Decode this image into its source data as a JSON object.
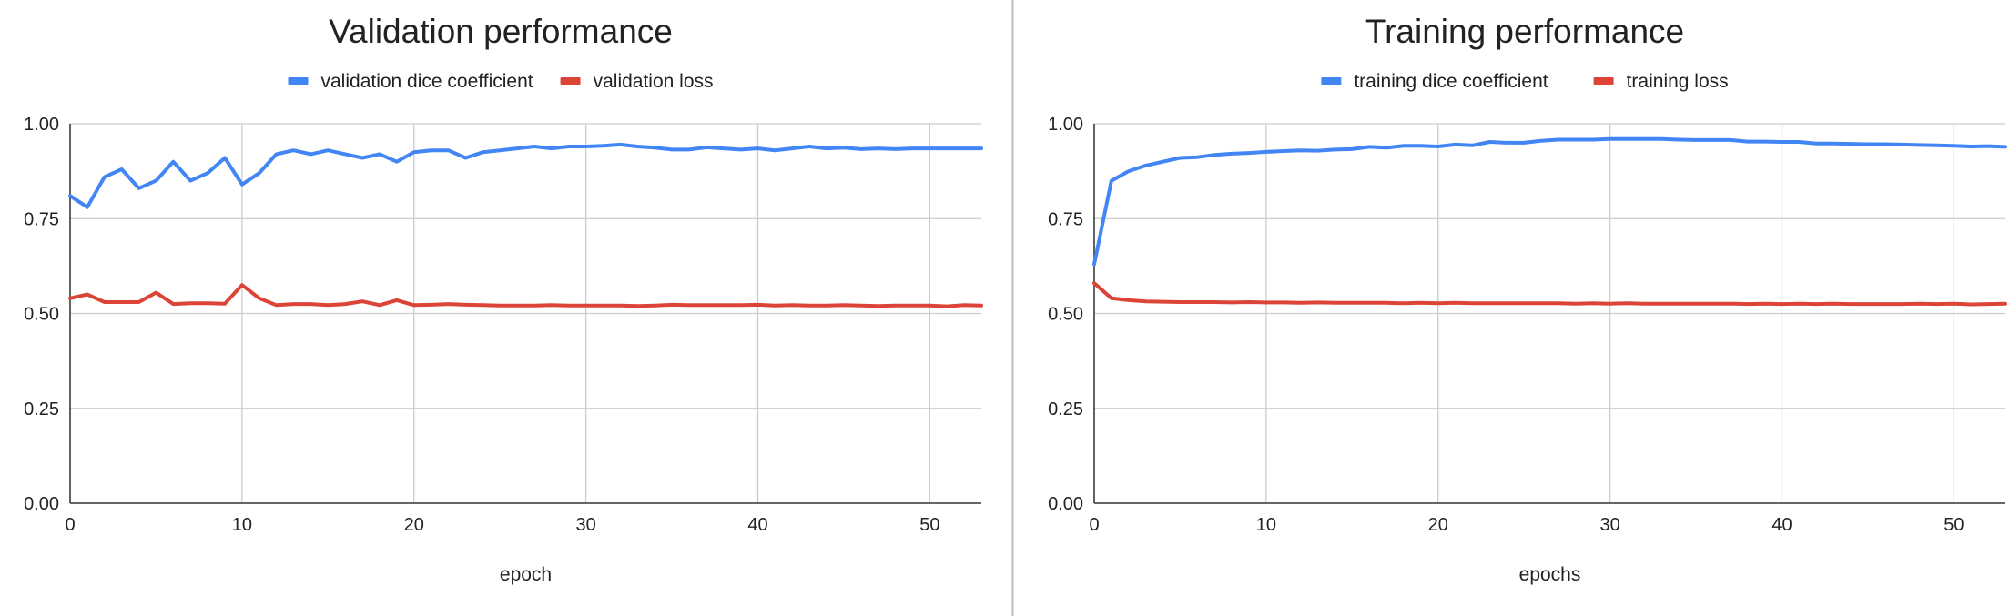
{
  "chart_data": [
    {
      "type": "line",
      "title": "Validation performance",
      "xlabel": "epoch",
      "ylabel": "",
      "xlim": [
        0,
        53
      ],
      "ylim": [
        0,
        1
      ],
      "xticks": [
        0,
        10,
        20,
        30,
        40,
        50
      ],
      "yticks": [
        "0.00",
        "0.25",
        "0.50",
        "0.75",
        "1.00"
      ],
      "legend_position": "top",
      "grid": true,
      "series": [
        {
          "name": "validation dice coefficient",
          "color": "#4285F4",
          "x": [
            0,
            1,
            2,
            3,
            4,
            5,
            6,
            7,
            8,
            9,
            10,
            11,
            12,
            13,
            14,
            15,
            16,
            17,
            18,
            19,
            20,
            21,
            22,
            23,
            24,
            25,
            26,
            27,
            28,
            29,
            30,
            31,
            32,
            33,
            34,
            35,
            36,
            37,
            38,
            39,
            40,
            41,
            42,
            43,
            44,
            45,
            46,
            47,
            48,
            49,
            50,
            51,
            52,
            53
          ],
          "values": [
            0.81,
            0.78,
            0.86,
            0.88,
            0.83,
            0.85,
            0.9,
            0.85,
            0.87,
            0.91,
            0.84,
            0.87,
            0.92,
            0.93,
            0.92,
            0.93,
            0.92,
            0.91,
            0.92,
            0.9,
            0.925,
            0.93,
            0.93,
            0.91,
            0.925,
            0.93,
            0.935,
            0.94,
            0.935,
            0.94,
            0.94,
            0.942,
            0.945,
            0.94,
            0.937,
            0.932,
            0.932,
            0.938,
            0.935,
            0.932,
            0.935,
            0.93,
            0.935,
            0.94,
            0.935,
            0.937,
            0.933,
            0.935,
            0.933,
            0.935,
            0.935,
            0.935,
            0.935,
            0.935
          ]
        },
        {
          "name": "validation loss",
          "color": "#DB4437",
          "x": [
            0,
            1,
            2,
            3,
            4,
            5,
            6,
            7,
            8,
            9,
            10,
            11,
            12,
            13,
            14,
            15,
            16,
            17,
            18,
            19,
            20,
            21,
            22,
            23,
            24,
            25,
            26,
            27,
            28,
            29,
            30,
            31,
            32,
            33,
            34,
            35,
            36,
            37,
            38,
            39,
            40,
            41,
            42,
            43,
            44,
            45,
            46,
            47,
            48,
            49,
            50,
            51,
            52,
            53
          ],
          "values": [
            0.54,
            0.55,
            0.53,
            0.53,
            0.53,
            0.555,
            0.525,
            0.527,
            0.527,
            0.526,
            0.575,
            0.54,
            0.522,
            0.525,
            0.525,
            0.522,
            0.525,
            0.532,
            0.522,
            0.535,
            0.522,
            0.523,
            0.525,
            0.523,
            0.522,
            0.521,
            0.521,
            0.521,
            0.522,
            0.521,
            0.521,
            0.521,
            0.521,
            0.52,
            0.521,
            0.523,
            0.522,
            0.522,
            0.522,
            0.522,
            0.523,
            0.521,
            0.522,
            0.521,
            0.521,
            0.522,
            0.521,
            0.52,
            0.521,
            0.521,
            0.521,
            0.519,
            0.522,
            0.521
          ]
        }
      ]
    },
    {
      "type": "line",
      "title": "Training performance",
      "xlabel": "epochs",
      "ylabel": "",
      "xlim": [
        0,
        53
      ],
      "ylim": [
        0,
        1
      ],
      "xticks": [
        0,
        10,
        20,
        30,
        40,
        50
      ],
      "yticks": [
        "0.00",
        "0.25",
        "0.50",
        "0.75",
        "1.00"
      ],
      "legend_position": "top",
      "grid": true,
      "series": [
        {
          "name": "training dice coefficient",
          "color": "#4285F4",
          "x": [
            0,
            1,
            2,
            3,
            4,
            5,
            6,
            7,
            8,
            9,
            10,
            11,
            12,
            13,
            14,
            15,
            16,
            17,
            18,
            19,
            20,
            21,
            22,
            23,
            24,
            25,
            26,
            27,
            28,
            29,
            30,
            31,
            32,
            33,
            34,
            35,
            36,
            37,
            38,
            39,
            40,
            41,
            42,
            43,
            44,
            45,
            46,
            47,
            48,
            49,
            50,
            51,
            52,
            53
          ],
          "values": [
            0.63,
            0.85,
            0.875,
            0.89,
            0.9,
            0.91,
            0.912,
            0.918,
            0.921,
            0.923,
            0.926,
            0.928,
            0.93,
            0.929,
            0.932,
            0.933,
            0.939,
            0.937,
            0.942,
            0.942,
            0.94,
            0.945,
            0.943,
            0.952,
            0.95,
            0.95,
            0.955,
            0.958,
            0.958,
            0.958,
            0.96,
            0.96,
            0.96,
            0.96,
            0.958,
            0.957,
            0.957,
            0.957,
            0.953,
            0.953,
            0.952,
            0.952,
            0.948,
            0.948,
            0.947,
            0.946,
            0.946,
            0.945,
            0.944,
            0.943,
            0.942,
            0.94,
            0.941,
            0.939
          ]
        },
        {
          "name": "training loss",
          "color": "#DB4437",
          "x": [
            0,
            1,
            2,
            3,
            4,
            5,
            6,
            7,
            8,
            9,
            10,
            11,
            12,
            13,
            14,
            15,
            16,
            17,
            18,
            19,
            20,
            21,
            22,
            23,
            24,
            25,
            26,
            27,
            28,
            29,
            30,
            31,
            32,
            33,
            34,
            35,
            36,
            37,
            38,
            39,
            40,
            41,
            42,
            43,
            44,
            45,
            46,
            47,
            48,
            49,
            50,
            51,
            52,
            53
          ],
          "values": [
            0.58,
            0.54,
            0.535,
            0.532,
            0.531,
            0.53,
            0.53,
            0.53,
            0.529,
            0.53,
            0.529,
            0.529,
            0.528,
            0.529,
            0.528,
            0.528,
            0.528,
            0.528,
            0.527,
            0.528,
            0.527,
            0.528,
            0.527,
            0.527,
            0.527,
            0.527,
            0.527,
            0.527,
            0.526,
            0.527,
            0.526,
            0.527,
            0.526,
            0.526,
            0.526,
            0.526,
            0.526,
            0.526,
            0.525,
            0.526,
            0.525,
            0.526,
            0.525,
            0.526,
            0.525,
            0.525,
            0.525,
            0.525,
            0.526,
            0.525,
            0.526,
            0.524,
            0.525,
            0.526
          ]
        }
      ]
    }
  ]
}
